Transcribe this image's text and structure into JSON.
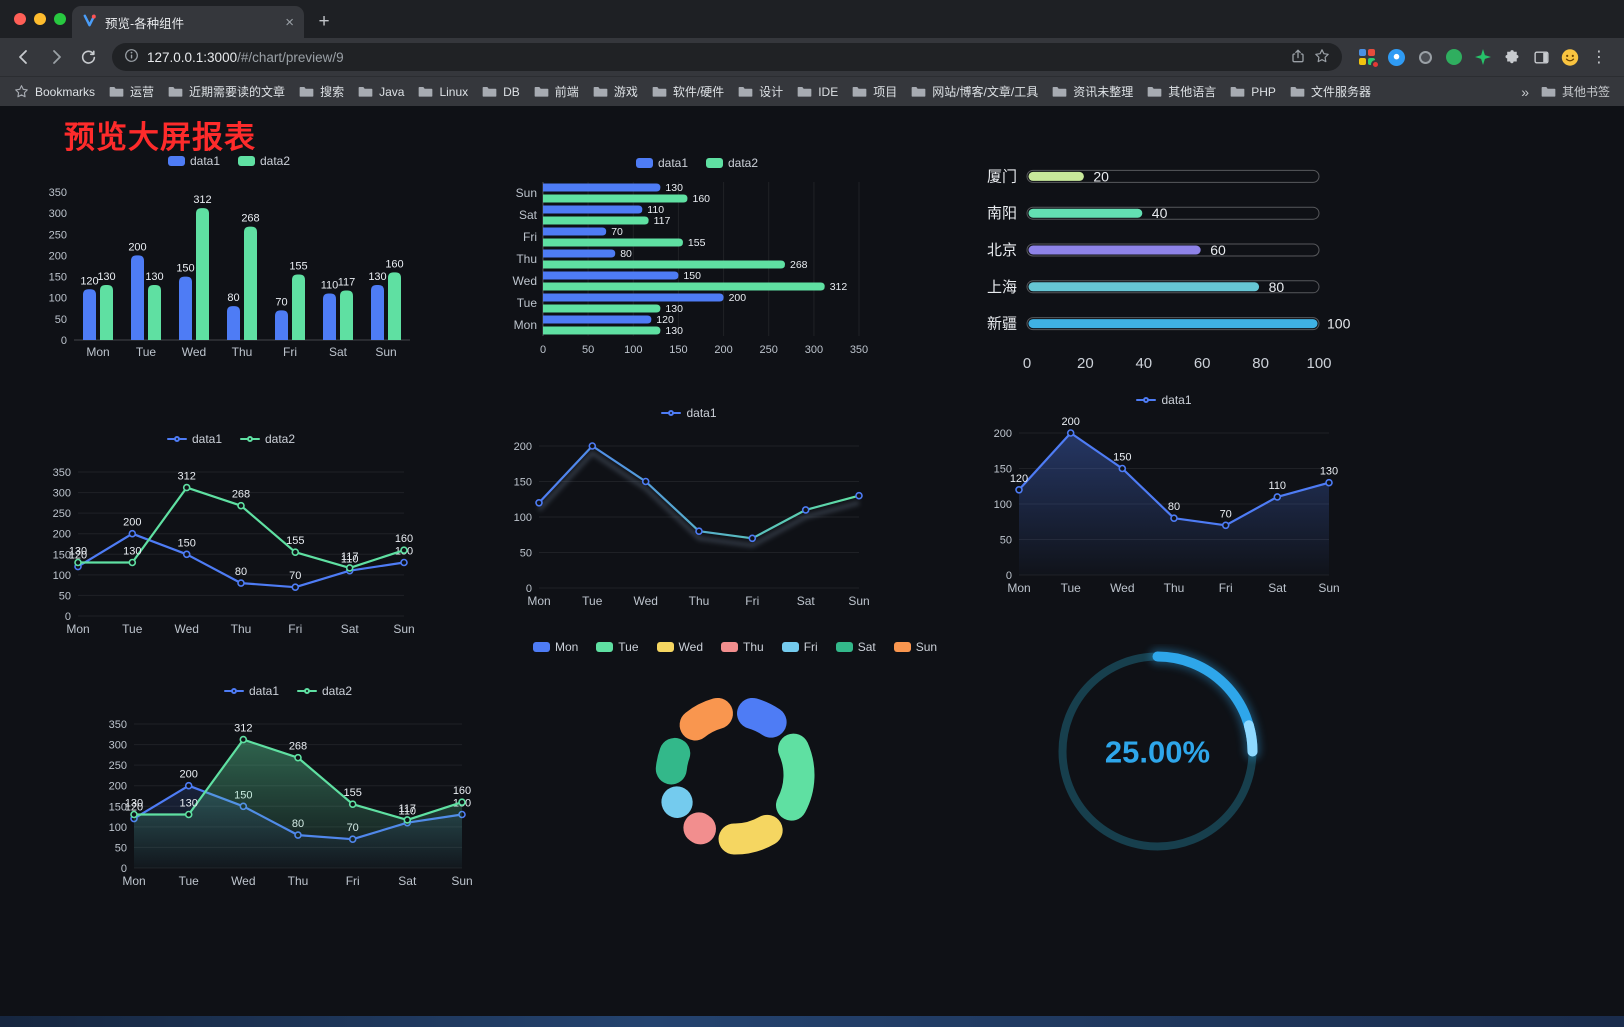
{
  "browser": {
    "tab": {
      "title": "预览-各种组件",
      "close_glyph": "×",
      "new_tab_glyph": "+"
    },
    "address": {
      "url_host": "127.0.0.1:3000",
      "url_path": "/#/chart/preview/9"
    },
    "toolbar": {
      "menu_glyph": "⋮"
    },
    "bookmarks_bar": {
      "label": "Bookmarks",
      "folders": [
        "运营",
        "近期需要读的文章",
        "搜索",
        "Java",
        "Linux",
        "DB",
        "前端",
        "游戏",
        "软件/硬件",
        "设计",
        "IDE",
        "项目",
        "网站/博客/文章/工具",
        "资讯未整理",
        "其他语言",
        "PHP",
        "文件服务器"
      ],
      "overflow_glyph": "»",
      "other_bookmarks": "其他书签"
    }
  },
  "page": {
    "title": "预览大屏报表"
  },
  "chart_data": [
    {
      "id": "grouped-bar",
      "type": "bar",
      "title": "",
      "legend_position": "top",
      "grid": false,
      "categories": [
        "Mon",
        "Tue",
        "Wed",
        "Thu",
        "Fri",
        "Sat",
        "Sun"
      ],
      "series": [
        {
          "name": "data1",
          "color": "#4E7CF5",
          "values": [
            120,
            200,
            150,
            80,
            70,
            110,
            130
          ]
        },
        {
          "name": "data2",
          "color": "#5FE0A2",
          "values": [
            130,
            130,
            312,
            268,
            155,
            117,
            160
          ]
        }
      ],
      "ylim": [
        0,
        350
      ],
      "yticks": [
        0,
        50,
        100,
        150,
        200,
        250,
        300,
        350
      ],
      "show_labels": true
    },
    {
      "id": "horizontal-bar",
      "type": "hbar",
      "legend_position": "top",
      "grid": true,
      "categories": [
        "Mon",
        "Tue",
        "Wed",
        "Thu",
        "Fri",
        "Sat",
        "Sun"
      ],
      "series": [
        {
          "name": "data1",
          "color": "#4E7CF5",
          "values": [
            120,
            200,
            150,
            80,
            70,
            110,
            130
          ]
        },
        {
          "name": "data2",
          "color": "#5FE0A2",
          "values": [
            130,
            130,
            312,
            268,
            155,
            117,
            160
          ]
        }
      ],
      "xlim": [
        0,
        350
      ],
      "xticks": [
        0,
        50,
        100,
        150,
        200,
        250,
        300,
        350
      ],
      "show_labels": true
    },
    {
      "id": "capsule-bars",
      "type": "capsule",
      "items": [
        {
          "label": "厦门",
          "value": 20,
          "color": "#C8E89A"
        },
        {
          "label": "南阳",
          "value": 40,
          "color": "#63E0B3"
        },
        {
          "label": "北京",
          "value": 60,
          "color": "#8E83E8"
        },
        {
          "label": "上海",
          "value": 80,
          "color": "#66C6D4"
        },
        {
          "label": "新疆",
          "value": 100,
          "color": "#3FB1E3"
        }
      ],
      "xlim": [
        0,
        100
      ],
      "xticks": [
        0,
        20,
        40,
        60,
        80,
        100
      ]
    },
    {
      "id": "two-series-line",
      "type": "line",
      "legend_position": "top",
      "categories": [
        "Mon",
        "Tue",
        "Wed",
        "Thu",
        "Fri",
        "Sat",
        "Sun"
      ],
      "series": [
        {
          "name": "data1",
          "color": "#4E7CF5",
          "values": [
            120,
            200,
            150,
            80,
            70,
            110,
            130
          ]
        },
        {
          "name": "data2",
          "color": "#5FE0A2",
          "values": [
            130,
            130,
            312,
            268,
            155,
            117,
            160
          ]
        }
      ],
      "ylim": [
        0,
        350
      ],
      "yticks": [
        0,
        50,
        100,
        150,
        200,
        250,
        300,
        350
      ],
      "show_labels": true
    },
    {
      "id": "gradient-line",
      "type": "line",
      "legend_position": "top",
      "categories": [
        "Mon",
        "Tue",
        "Wed",
        "Thu",
        "Fri",
        "Sat",
        "Sun"
      ],
      "series": [
        {
          "name": "data1",
          "color": "#4E7CF5",
          "gradient": [
            "#4E7CF5",
            "#5FE0A2"
          ],
          "shadow": true,
          "values": [
            120,
            200,
            150,
            80,
            70,
            110,
            130
          ]
        }
      ],
      "ylim": [
        0,
        200
      ],
      "yticks": [
        0,
        50,
        100,
        150,
        200
      ],
      "show_labels": false
    },
    {
      "id": "area-line",
      "type": "line",
      "legend_position": "top",
      "categories": [
        "Mon",
        "Tue",
        "Wed",
        "Thu",
        "Fri",
        "Sat",
        "Sun"
      ],
      "series": [
        {
          "name": "data1",
          "color": "#4E7CF5",
          "area": 0.35,
          "values": [
            120,
            200,
            150,
            80,
            70,
            110,
            130
          ]
        }
      ],
      "ylim": [
        0,
        200
      ],
      "yticks": [
        0,
        50,
        100,
        150,
        200
      ],
      "show_labels": true
    },
    {
      "id": "two-series-area-line",
      "type": "line",
      "legend_position": "top",
      "categories": [
        "Mon",
        "Tue",
        "Wed",
        "Thu",
        "Fri",
        "Sat",
        "Sun"
      ],
      "series": [
        {
          "name": "data1",
          "color": "#4E7CF5",
          "area": 0.16,
          "values": [
            120,
            200,
            150,
            80,
            70,
            110,
            130
          ]
        },
        {
          "name": "data2",
          "color": "#5FE0A2",
          "area": 0.4,
          "values": [
            130,
            130,
            312,
            268,
            155,
            117,
            160
          ]
        }
      ],
      "ylim": [
        0,
        350
      ],
      "yticks": [
        0,
        50,
        100,
        150,
        200,
        250,
        300,
        350
      ],
      "show_labels": true
    },
    {
      "id": "donut-pie",
      "type": "pie",
      "legend_position": "top",
      "labels": [
        "Mon",
        "Tue",
        "Wed",
        "Thu",
        "Fri",
        "Sat",
        "Sun"
      ],
      "values": [
        120,
        200,
        150,
        80,
        70,
        110,
        130
      ],
      "colors": [
        "#4E7CF5",
        "#5FE0A2",
        "#F5D661",
        "#F28E8E",
        "#74CBEE",
        "#33B88A",
        "#F9964F"
      ]
    },
    {
      "id": "ring-progress",
      "type": "gauge",
      "value_percent": 25,
      "label": "25.00%",
      "color": "#2EA6EA",
      "track_color": "#173F4D"
    }
  ]
}
